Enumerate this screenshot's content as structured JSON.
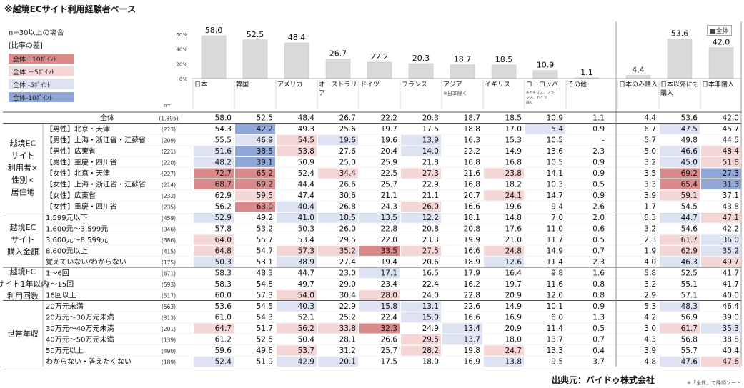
{
  "note_top": "※越境ECサイト利用経験者ベース",
  "note_n": "n=30以上の場合",
  "legend": {
    "title": "[比率の差]",
    "items": [
      {
        "label": "全体＋10ﾎﾟｲﾝﾄ",
        "color": "#d98a8a"
      },
      {
        "label": "全体 ＋5ﾎﾟｲﾝﾄ",
        "color": "#f4d6d6"
      },
      {
        "label": "全体 -5ﾎﾟｲﾝﾄ",
        "color": "#dde3f2"
      },
      {
        "label": "全体-10ﾎﾟｲﾝﾄ",
        "color": "#8fa6d6"
      }
    ],
    "badge": "■全体"
  },
  "colors": {
    "plus10": "#d98a8a",
    "plus5": "#f4d6d6",
    "minus5": "#dde3f2",
    "minus10": "#8fa6d6",
    "bar": "#d9d9d9",
    "bar_edge": "#bfbfbf",
    "grid": "#cccccc"
  },
  "chart_data": {
    "type": "table",
    "bar_yticks": [
      "60%",
      "40%",
      "20%",
      "0%"
    ],
    "bar_ylim": [
      0,
      60
    ],
    "n_header": "n=",
    "columns": [
      "日本",
      "韓国",
      "アメリカ",
      "オーストラリア",
      "ドイツ",
      "フランス",
      "アジア",
      "イギリス",
      "ヨーロッパ",
      "その他",
      "日本のみ購入",
      "日本以外にも購入",
      "日本非購入"
    ],
    "column_subnotes": [
      "",
      "",
      "",
      "",
      "",
      "",
      "※日本除く",
      "",
      "※イギリス、フランス、ドイツ除く",
      "",
      "",
      "",
      ""
    ],
    "overall_values": [
      58.0,
      52.5,
      48.4,
      26.7,
      22.2,
      20.3,
      18.7,
      18.5,
      10.9,
      1.1,
      4.4,
      53.6,
      42.0
    ],
    "groups": [
      {
        "label": "",
        "rows": [
          0
        ]
      },
      {
        "label": "越境EC\nサイト\n利用者×\n性別×\n居住地",
        "rows": [
          1,
          2,
          3,
          4,
          5,
          6,
          7,
          8
        ]
      },
      {
        "label": "越境EC\nサイト\n購入金額",
        "rows": [
          9,
          10,
          11,
          12,
          13
        ]
      },
      {
        "label": "越境EC\nサイト1年以内\n利用回数",
        "rows": [
          14,
          15,
          16
        ]
      },
      {
        "label": "世帯年収",
        "rows": [
          17,
          18,
          19,
          20,
          21,
          22
        ]
      }
    ],
    "rows": [
      {
        "label": "全体",
        "n": "(1,895)",
        "values": [
          "58.0",
          "52.5",
          "48.4",
          "26.7",
          "22.2",
          "20.3",
          "18.7",
          "18.5",
          "10.9",
          "1.1",
          "4.4",
          "53.6",
          "42.0"
        ],
        "shade": [
          0,
          0,
          0,
          0,
          0,
          0,
          0,
          0,
          0,
          0,
          0,
          0,
          0
        ]
      },
      {
        "label": "【男性】北京・天津",
        "n": "(223)",
        "values": [
          "54.3",
          "42.2",
          "49.3",
          "25.6",
          "19.7",
          "17.5",
          "18.8",
          "17.0",
          "5.4",
          "0.9",
          "6.7",
          "47.5",
          "45.7"
        ],
        "shade": [
          0,
          -2,
          0,
          0,
          0,
          0,
          0,
          0,
          -1,
          0,
          0,
          -1,
          0
        ]
      },
      {
        "label": "【男性】上海・浙江省・江蘇省",
        "n": "(209)",
        "values": [
          "55.5",
          "46.9",
          "54.5",
          "19.6",
          "19.6",
          "13.9",
          "16.3",
          "15.3",
          "10.5",
          "-",
          "5.7",
          "49.8",
          "44.5"
        ],
        "shade": [
          0,
          -1,
          1,
          -1,
          0,
          -1,
          0,
          0,
          0,
          0,
          0,
          0,
          0
        ]
      },
      {
        "label": "【男性】広東省",
        "n": "(221)",
        "values": [
          "51.6",
          "38.5",
          "53.8",
          "27.6",
          "20.4",
          "14.0",
          "22.2",
          "14.9",
          "13.6",
          "2.3",
          "5.0",
          "46.6",
          "48.4"
        ],
        "shade": [
          -1,
          -2,
          1,
          0,
          0,
          -1,
          0,
          0,
          0,
          0,
          0,
          -1,
          1
        ]
      },
      {
        "label": "【男性】重慶・四川省",
        "n": "(220)",
        "values": [
          "48.2",
          "39.1",
          "50.9",
          "25.0",
          "25.9",
          "21.8",
          "16.8",
          "16.8",
          "10.5",
          "0.9",
          "3.2",
          "45.0",
          "51.8"
        ],
        "shade": [
          -1,
          -2,
          0,
          0,
          0,
          0,
          0,
          0,
          0,
          0,
          0,
          -1,
          1
        ]
      },
      {
        "label": "【女性】北京・天津",
        "n": "(227)",
        "values": [
          "72.7",
          "65.2",
          "52.4",
          "34.4",
          "22.5",
          "27.3",
          "21.6",
          "23.8",
          "14.1",
          "0.9",
          "3.5",
          "69.2",
          "27.3"
        ],
        "shade": [
          2,
          2,
          0,
          1,
          0,
          1,
          0,
          1,
          0,
          0,
          0,
          2,
          -2
        ]
      },
      {
        "label": "【女性】上海・浙江省・江蘇省",
        "n": "(214)",
        "values": [
          "68.7",
          "69.2",
          "44.4",
          "26.6",
          "25.7",
          "22.9",
          "16.8",
          "18.2",
          "10.3",
          "0.5",
          "3.3",
          "65.4",
          "31.3"
        ],
        "shade": [
          2,
          2,
          0,
          0,
          0,
          0,
          0,
          0,
          0,
          0,
          0,
          2,
          -2
        ]
      },
      {
        "label": "【女性】広東省",
        "n": "(232)",
        "values": [
          "62.9",
          "59.5",
          "47.4",
          "30.6",
          "21.1",
          "21.1",
          "20.7",
          "24.1",
          "14.7",
          "0.9",
          "3.9",
          "59.1",
          "37.1"
        ],
        "shade": [
          0,
          1,
          0,
          0,
          0,
          0,
          0,
          1,
          0,
          0,
          0,
          1,
          0
        ]
      },
      {
        "label": "【女性】重慶・四川省",
        "n": "(235)",
        "values": [
          "56.2",
          "63.0",
          "40.4",
          "26.8",
          "24.3",
          "26.0",
          "16.6",
          "19.6",
          "9.4",
          "2.6",
          "1.7",
          "54.5",
          "43.8"
        ],
        "shade": [
          0,
          2,
          -1,
          0,
          0,
          1,
          0,
          0,
          0,
          0,
          0,
          0,
          0
        ]
      },
      {
        "label": "1,599元以下",
        "n": "(459)",
        "values": [
          "52.9",
          "49.2",
          "41.0",
          "18.5",
          "13.5",
          "12.2",
          "18.1",
          "14.8",
          "7.0",
          "2.0",
          "8.3",
          "44.7",
          "47.1"
        ],
        "shade": [
          -1,
          0,
          -1,
          -1,
          -1,
          -1,
          0,
          0,
          0,
          0,
          0,
          -1,
          1
        ]
      },
      {
        "label": "1,600元～3,599元",
        "n": "(346)",
        "values": [
          "57.8",
          "53.2",
          "50.3",
          "26.0",
          "22.8",
          "20.8",
          "20.8",
          "17.6",
          "11.0",
          "0.6",
          "3.2",
          "54.6",
          "42.2"
        ],
        "shade": [
          0,
          0,
          0,
          0,
          0,
          0,
          0,
          0,
          0,
          0,
          0,
          0,
          0
        ]
      },
      {
        "label": "3,600元～8,599元",
        "n": "(386)",
        "values": [
          "64.0",
          "55.7",
          "53.4",
          "29.5",
          "22.0",
          "23.3",
          "19.9",
          "21.0",
          "11.7",
          "0.5",
          "2.3",
          "61.7",
          "36.0"
        ],
        "shade": [
          1,
          0,
          0,
          0,
          0,
          0,
          0,
          0,
          0,
          0,
          0,
          1,
          -1
        ]
      },
      {
        "label": "8,600元以上",
        "n": "(415)",
        "values": [
          "64.8",
          "54.7",
          "57.3",
          "35.2",
          "33.5",
          "27.5",
          "16.6",
          "24.8",
          "14.9",
          "0.7",
          "1.9",
          "62.9",
          "35.2"
        ],
        "shade": [
          1,
          0,
          1,
          1,
          2,
          1,
          0,
          1,
          0,
          0,
          0,
          1,
          -1
        ]
      },
      {
        "label": "覚えていない/わからない",
        "n": "(175)",
        "values": [
          "50.3",
          "53.1",
          "38.9",
          "27.4",
          "19.4",
          "20.6",
          "18.9",
          "12.6",
          "11.4",
          "2.3",
          "4.0",
          "46.3",
          "49.7"
        ],
        "shade": [
          -1,
          0,
          -1,
          0,
          0,
          0,
          0,
          -1,
          0,
          0,
          0,
          -1,
          1
        ]
      },
      {
        "label": "1～6回",
        "n": "(671)",
        "values": [
          "58.3",
          "48.3",
          "44.7",
          "23.0",
          "17.1",
          "16.5",
          "17.9",
          "16.4",
          "9.8",
          "1.6",
          "5.8",
          "52.5",
          "41.7"
        ],
        "shade": [
          0,
          0,
          0,
          0,
          -1,
          0,
          0,
          0,
          0,
          0,
          0,
          0,
          0
        ]
      },
      {
        "label": "7～15回",
        "n": "(593)",
        "values": [
          "58.3",
          "54.8",
          "49.7",
          "29.0",
          "23.4",
          "22.4",
          "16.2",
          "19.7",
          "11.6",
          "0.8",
          "3.2",
          "55.1",
          "41.7"
        ],
        "shade": [
          0,
          0,
          0,
          0,
          0,
          0,
          0,
          0,
          0,
          0,
          0,
          0,
          0
        ]
      },
      {
        "label": "16回以上",
        "n": "(517)",
        "values": [
          "60.0",
          "57.3",
          "54.0",
          "30.4",
          "28.0",
          "24.0",
          "22.8",
          "20.9",
          "12.0",
          "0.8",
          "2.9",
          "57.1",
          "40.0"
        ],
        "shade": [
          0,
          0,
          1,
          0,
          1,
          0,
          0,
          0,
          0,
          0,
          0,
          0,
          0
        ]
      },
      {
        "label": "20万元未満",
        "n": "(563)",
        "values": [
          "53.6",
          "54.5",
          "40.3",
          "22.9",
          "15.8",
          "13.1",
          "22.6",
          "14.9",
          "10.1",
          "0.9",
          "5.3",
          "48.3",
          "46.4"
        ],
        "shade": [
          0,
          0,
          -1,
          0,
          -1,
          -1,
          0,
          0,
          0,
          0,
          0,
          -1,
          0
        ]
      },
      {
        "label": "20万元～30万元未満",
        "n": "(313)",
        "values": [
          "61.0",
          "54.3",
          "52.1",
          "25.2",
          "22.4",
          "15.0",
          "16.6",
          "16.9",
          "8.0",
          "1.3",
          "4.2",
          "56.9",
          "39.0"
        ],
        "shade": [
          0,
          0,
          0,
          0,
          0,
          -1,
          0,
          0,
          0,
          0,
          0,
          0,
          0
        ]
      },
      {
        "label": "30万元～40万元未満",
        "n": "(201)",
        "values": [
          "64.7",
          "51.7",
          "56.2",
          "33.8",
          "32.3",
          "24.9",
          "13.4",
          "20.9",
          "11.4",
          "0.5",
          "3.0",
          "61.7",
          "35.3"
        ],
        "shade": [
          1,
          0,
          1,
          1,
          2,
          0,
          -1,
          0,
          0,
          0,
          0,
          1,
          -1
        ]
      },
      {
        "label": "40万元～50万元未満",
        "n": "(139)",
        "values": [
          "61.2",
          "52.5",
          "50.4",
          "28.1",
          "26.6",
          "29.5",
          "13.7",
          "18.0",
          "13.7",
          "0.7",
          "4.3",
          "56.8",
          "38.8"
        ],
        "shade": [
          0,
          0,
          0,
          0,
          0,
          1,
          -1,
          0,
          0,
          0,
          0,
          0,
          0
        ]
      },
      {
        "label": "50万元以上",
        "n": "(490)",
        "values": [
          "59.6",
          "49.6",
          "53.7",
          "31.2",
          "25.7",
          "28.2",
          "19.8",
          "24.7",
          "13.3",
          "0.4",
          "3.9",
          "55.7",
          "40.4"
        ],
        "shade": [
          0,
          0,
          1,
          0,
          0,
          1,
          0,
          1,
          0,
          0,
          0,
          0,
          0
        ]
      },
      {
        "label": "わからない・答えたくない",
        "n": "(189)",
        "values": [
          "52.4",
          "51.9",
          "42.9",
          "20.1",
          "17.5",
          "18.0",
          "16.9",
          "13.8",
          "9.5",
          "3.7",
          "4.8",
          "47.6",
          "47.6"
        ],
        "shade": [
          -1,
          0,
          -1,
          -1,
          0,
          0,
          0,
          -1,
          0,
          0,
          0,
          -1,
          1
        ]
      }
    ]
  },
  "footer_note": "※「全体」で降順ソート",
  "source": "出典元：バイドゥ株式会社"
}
